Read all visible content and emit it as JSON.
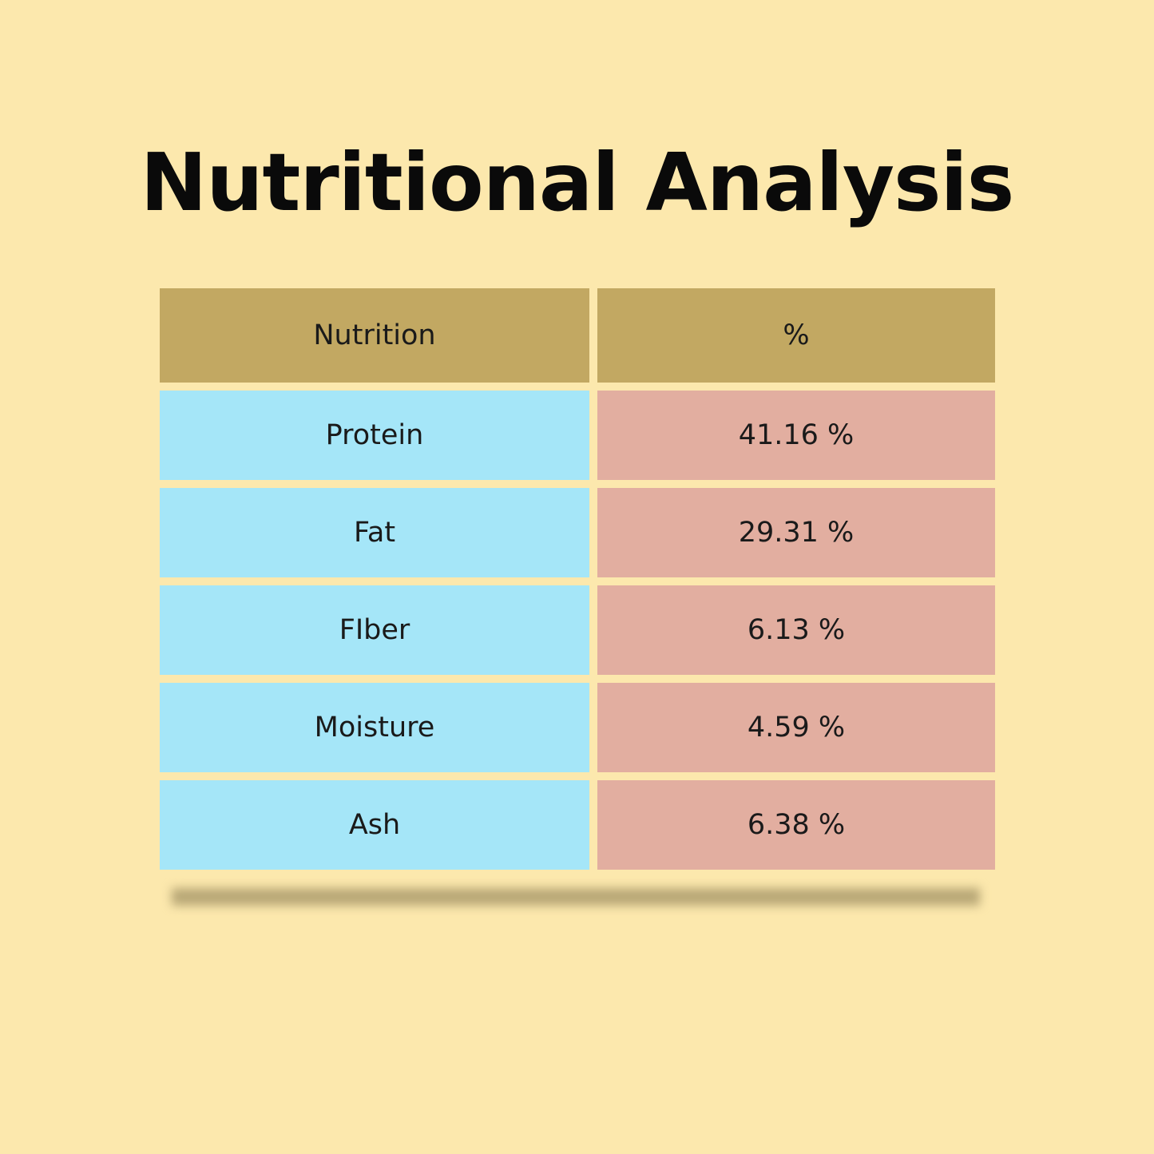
{
  "title": "Nutritional Analysis",
  "table": {
    "header": [
      "Nutrition",
      "%"
    ],
    "rows": [
      [
        "Protein",
        "41.16 %"
      ],
      [
        "Fat",
        "29.31 %"
      ],
      [
        "FIber",
        "6.13 %"
      ],
      [
        "Moisture",
        "4.59 %"
      ],
      [
        "Ash",
        "6.38 %"
      ]
    ]
  }
}
